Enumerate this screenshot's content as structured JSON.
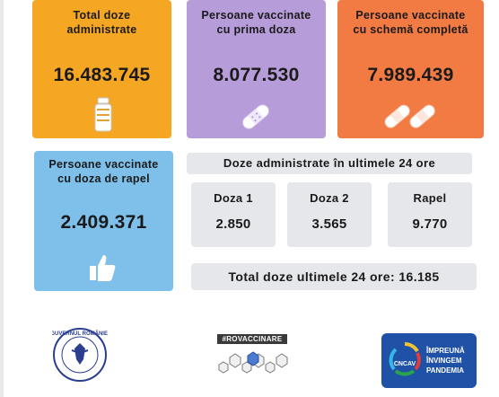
{
  "cards": {
    "total": {
      "title_line1": "Total doze",
      "title_line2": "administrate",
      "value": "16.483.745",
      "icon": "vial-icon",
      "color": "#f5a623"
    },
    "first_dose": {
      "title_line1": "Persoane vaccinate",
      "title_line2": "cu prima doza",
      "value": "8.077.530",
      "icon": "bandage-icon",
      "color": "#b69cd9"
    },
    "full_schema": {
      "title_line1": "Persoane vaccinate",
      "title_line2": "cu schemă completă",
      "value": "7.989.439",
      "icon": "double-bandage-icon",
      "color": "#f27a43"
    },
    "booster": {
      "title_line1": "Persoane  vaccinate",
      "title_line2": "cu doza de rapel",
      "value": "2.409.371",
      "icon": "thumbs-up-icon",
      "color": "#7ec0ea"
    }
  },
  "daily": {
    "title": "Doze administrate în ultimele 24 ore",
    "items": [
      {
        "label": "Doza 1",
        "value": "2.850"
      },
      {
        "label": "Doza 2",
        "value": "3.565"
      },
      {
        "label": "Rapel",
        "value": "9.770"
      }
    ],
    "total_text": "Total doze ultimele 24 ore: 16.185"
  },
  "footer": {
    "gov_logo_text": "GUVERNUL ROMÂNIEI",
    "hashtag": "#ROVACCINARE",
    "campaign_line1": "ÎMPREUNĂ",
    "campaign_line2": "ÎNVINGEM",
    "campaign_line3": "PANDEMIA",
    "campaign_badge": "CNCAV"
  }
}
